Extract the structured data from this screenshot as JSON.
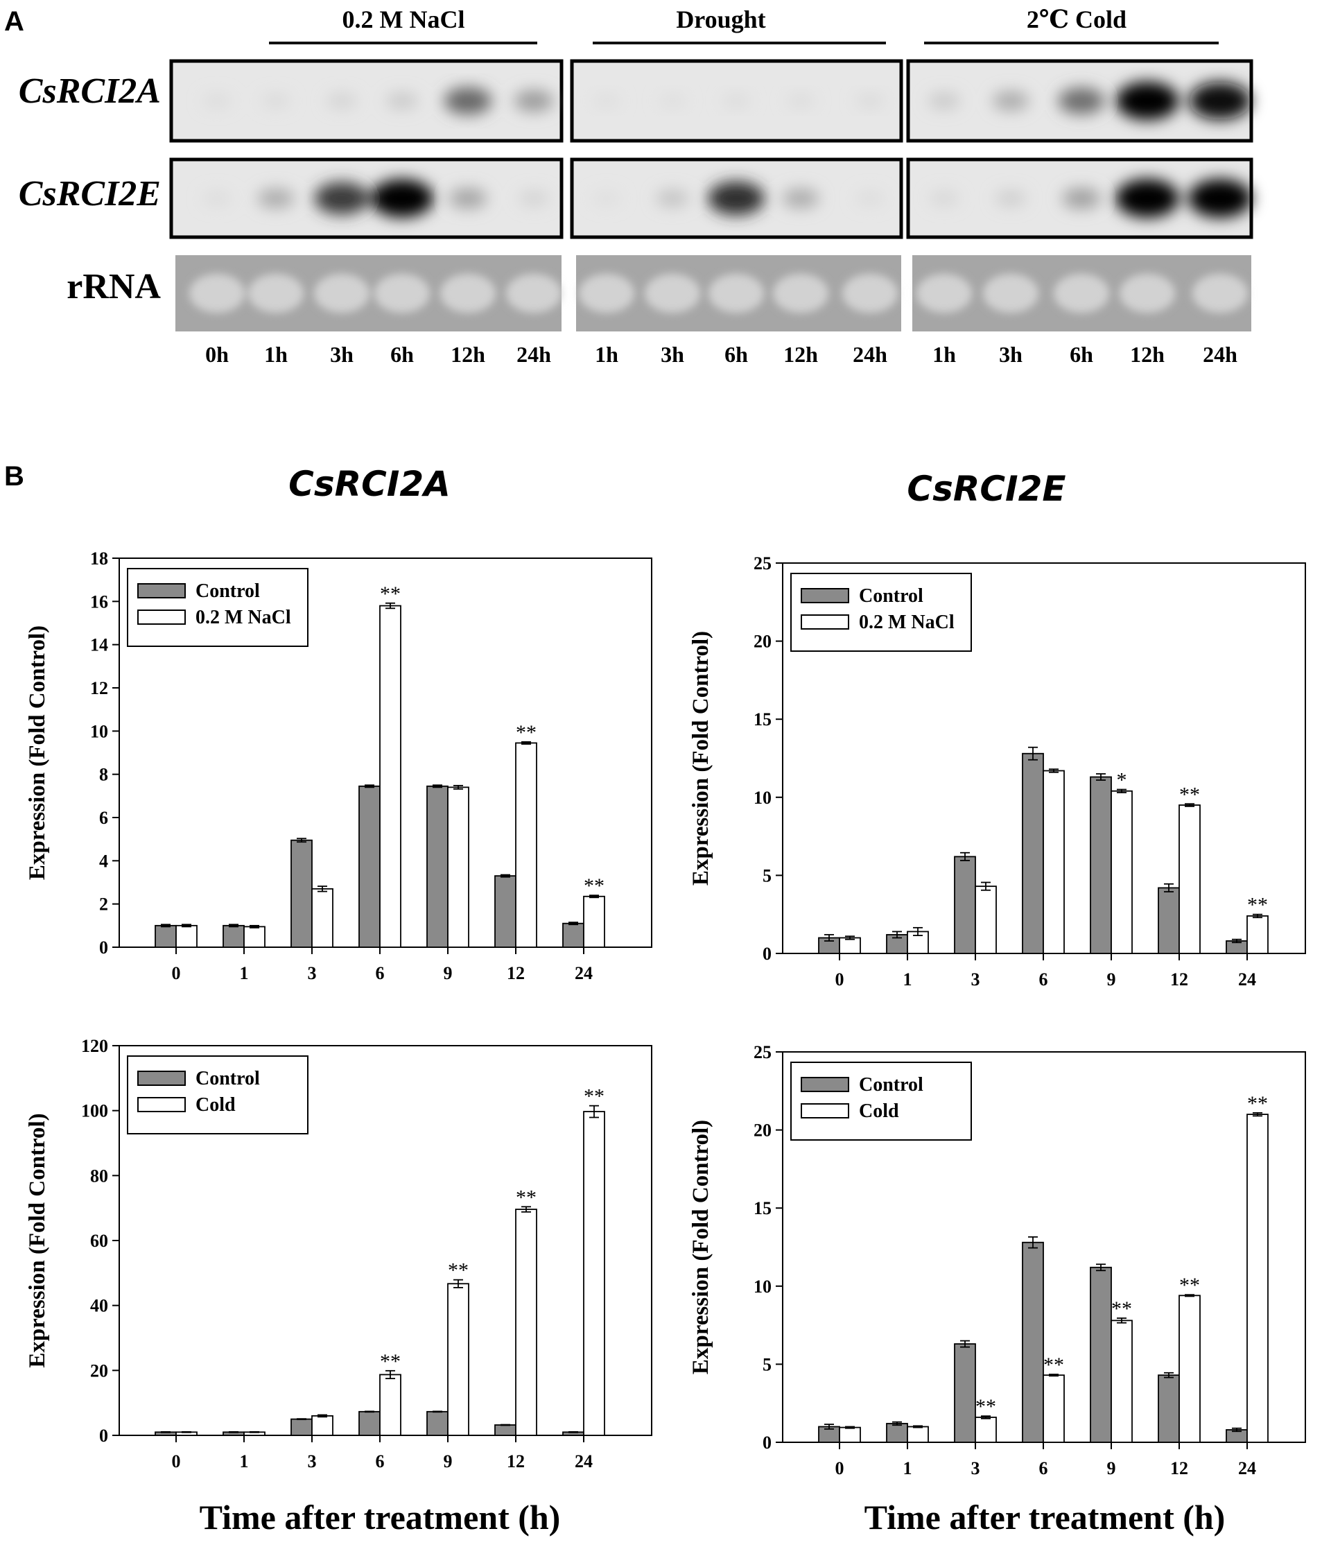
{
  "panel_a": {
    "letter": "A",
    "treatments": [
      "0.2 M NaCl",
      "Drought",
      "2℃ Cold"
    ],
    "rows": [
      {
        "label": "CsRCI2A",
        "style": "italic",
        "intensities": [
          [
            0.04,
            0.05,
            0.08,
            0.12,
            0.55,
            0.32
          ],
          [
            0.03,
            0.03,
            0.04,
            0.04,
            0.05
          ],
          [
            0.12,
            0.25,
            0.52,
            0.98,
            0.95
          ]
        ]
      },
      {
        "label": "CsRCI2E",
        "style": "italic",
        "intensities": [
          [
            0.04,
            0.25,
            0.75,
            0.98,
            0.28,
            0.08
          ],
          [
            0.03,
            0.15,
            0.8,
            0.25,
            0.04
          ],
          [
            0.06,
            0.1,
            0.3,
            1.0,
            1.0
          ]
        ]
      },
      {
        "label": "rRNA",
        "style": "normal"
      }
    ],
    "lane_labels": [
      [
        "0h",
        "1h",
        "3h",
        "6h",
        "12h",
        "24h"
      ],
      [
        "1h",
        "3h",
        "6h",
        "12h",
        "24h"
      ],
      [
        "1h",
        "3h",
        "6h",
        "12h",
        "24h"
      ]
    ]
  },
  "panel_b": {
    "letter": "B",
    "gene_titles": [
      "CsRCI2A",
      "CsRCI2E"
    ],
    "shared_xlabel": "Time after treatment (h)"
  },
  "chart_data": [
    {
      "type": "bar",
      "gene": "CsRCI2A",
      "treatment": "0.2 M NaCl",
      "categories": [
        "0",
        "1",
        "3",
        "6",
        "9",
        "12",
        "24"
      ],
      "ylabel": "Expression (Fold Control)",
      "ylim": [
        0,
        18
      ],
      "yticks": [
        0,
        2,
        4,
        6,
        8,
        10,
        12,
        14,
        16,
        18
      ],
      "legend_position": "top-left",
      "grid": false,
      "series": [
        {
          "name": "Control",
          "color": "#8a8a8a",
          "values": [
            1.0,
            1.0,
            4.95,
            7.45,
            7.45,
            3.3,
            1.1
          ],
          "errors": [
            0.05,
            0.05,
            0.08,
            0.05,
            0.05,
            0.05,
            0.05
          ]
        },
        {
          "name": "0.2 M NaCl",
          "color": "#ffffff",
          "values": [
            1.0,
            0.95,
            2.7,
            15.8,
            7.4,
            9.45,
            2.35
          ],
          "errors": [
            0.05,
            0.05,
            0.12,
            0.12,
            0.08,
            0.05,
            0.05
          ]
        }
      ],
      "annotations": [
        "",
        "",
        "",
        "**",
        "",
        "**",
        "**"
      ]
    },
    {
      "type": "bar",
      "gene": "CsRCI2E",
      "treatment": "0.2 M NaCl",
      "categories": [
        "0",
        "1",
        "3",
        "6",
        "9",
        "12",
        "24"
      ],
      "ylabel": "Expression (Fold Control)",
      "ylim": [
        0,
        25
      ],
      "yticks": [
        0,
        5,
        10,
        15,
        20,
        25
      ],
      "legend_position": "top-left",
      "grid": false,
      "series": [
        {
          "name": "Control",
          "color": "#8a8a8a",
          "values": [
            1.0,
            1.2,
            6.2,
            12.8,
            11.3,
            4.2,
            0.8
          ],
          "errors": [
            0.2,
            0.2,
            0.25,
            0.4,
            0.2,
            0.25,
            0.1
          ]
        },
        {
          "name": "0.2 M NaCl",
          "color": "#ffffff",
          "values": [
            1.0,
            1.4,
            4.3,
            11.7,
            10.4,
            9.5,
            2.4
          ],
          "errors": [
            0.1,
            0.25,
            0.25,
            0.1,
            0.1,
            0.08,
            0.1
          ]
        }
      ],
      "annotations": [
        "",
        "",
        "",
        "",
        "*",
        "**",
        "**"
      ]
    },
    {
      "type": "bar",
      "gene": "CsRCI2A",
      "treatment": "Cold",
      "categories": [
        "0",
        "1",
        "3",
        "6",
        "9",
        "12",
        "24"
      ],
      "ylabel": "Expression (Fold Control)",
      "ylim": [
        0,
        120
      ],
      "yticks": [
        0,
        20,
        40,
        60,
        80,
        100,
        120
      ],
      "legend_position": "top-left",
      "grid": false,
      "series": [
        {
          "name": "Control",
          "color": "#8a8a8a",
          "values": [
            1.0,
            1.0,
            5.0,
            7.3,
            7.3,
            3.2,
            1.0
          ],
          "errors": [
            0.1,
            0.1,
            0.1,
            0.1,
            0.1,
            0.1,
            0.1
          ]
        },
        {
          "name": "Cold",
          "color": "#ffffff",
          "values": [
            1.0,
            1.0,
            6.0,
            18.7,
            46.7,
            69.6,
            99.7
          ],
          "errors": [
            0.1,
            0.1,
            0.3,
            1.2,
            1.2,
            0.8,
            1.8
          ]
        }
      ],
      "annotations": [
        "",
        "",
        "",
        "**",
        "**",
        "**",
        "**"
      ]
    },
    {
      "type": "bar",
      "gene": "CsRCI2E",
      "treatment": "Cold",
      "categories": [
        "0",
        "1",
        "3",
        "6",
        "9",
        "12",
        "24"
      ],
      "ylabel": "Expression (Fold Control)",
      "ylim": [
        0,
        25
      ],
      "yticks": [
        0,
        5,
        10,
        15,
        20,
        25
      ],
      "legend_position": "top-left",
      "grid": false,
      "series": [
        {
          "name": "Control",
          "color": "#8a8a8a",
          "values": [
            1.0,
            1.2,
            6.3,
            12.8,
            11.2,
            4.3,
            0.8
          ],
          "errors": [
            0.15,
            0.1,
            0.2,
            0.35,
            0.2,
            0.15,
            0.1
          ]
        },
        {
          "name": "Cold",
          "color": "#ffffff",
          "values": [
            0.95,
            1.0,
            1.6,
            4.3,
            7.8,
            9.4,
            21.0
          ],
          "errors": [
            0.05,
            0.05,
            0.08,
            0.05,
            0.15,
            0.05,
            0.1
          ]
        }
      ],
      "annotations": [
        "",
        "",
        "**",
        "**",
        "**",
        "**",
        "**"
      ]
    }
  ]
}
